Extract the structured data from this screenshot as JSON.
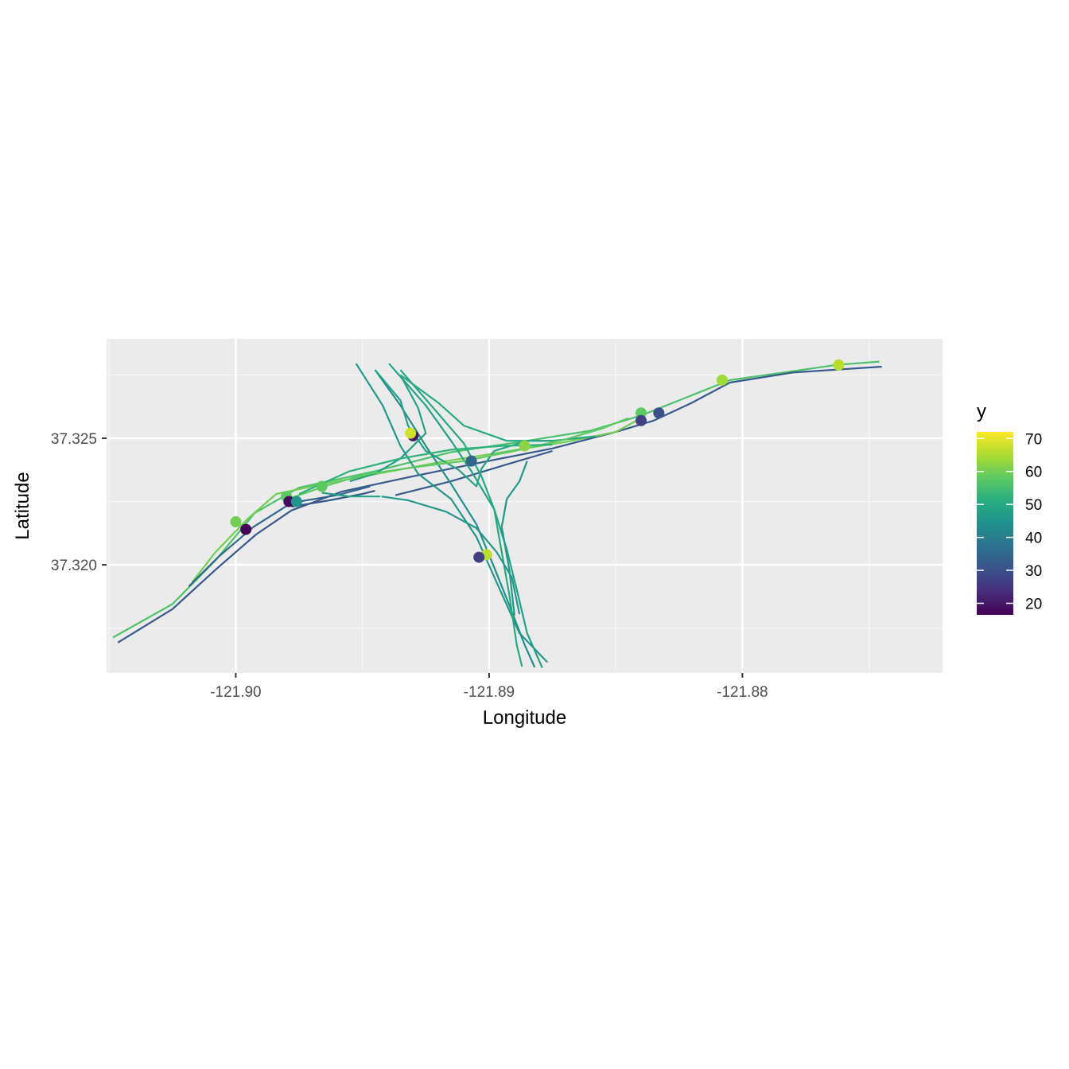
{
  "chart_data": {
    "type": "scatter",
    "geometry": "road network lines with sensor points",
    "xlabel": "Longitude",
    "ylabel": "Latitude",
    "xlim": [
      -121.9051,
      -121.8721
    ],
    "ylim": [
      37.31573,
      37.32893
    ],
    "x_ticks": [
      -121.9,
      -121.89,
      -121.88
    ],
    "x_tick_labels": [
      "-121.90",
      "-121.89",
      "-121.88"
    ],
    "x_minor_ticks": [
      -121.905,
      -121.895,
      -121.885,
      -121.875
    ],
    "y_ticks": [
      37.32,
      37.325
    ],
    "y_tick_labels": [
      "37.320",
      "37.325"
    ],
    "y_minor_ticks": [
      37.3175,
      37.3225,
      37.3275
    ],
    "grid": true,
    "panel_background": "#ebebeb",
    "legend": {
      "title": "y",
      "position": "right",
      "type": "colorbar",
      "palette": "viridis",
      "min": 16.5,
      "max": 72,
      "breaks": [
        20,
        30,
        40,
        50,
        60,
        70
      ],
      "break_labels": [
        "20",
        "30",
        "40",
        "50",
        "60",
        "70"
      ]
    },
    "lines": [
      {
        "value": 56,
        "points": [
          [
            -121.90485,
            37.31713
          ],
          [
            -121.9025,
            37.31845
          ],
          [
            -121.90078,
            37.3202
          ],
          [
            -121.89925,
            37.32205
          ],
          [
            -121.8975,
            37.32305
          ],
          [
            -121.8945,
            37.3237
          ],
          [
            -121.8915,
            37.32445
          ],
          [
            -121.8885,
            37.3249
          ],
          [
            -121.886,
            37.3253
          ],
          [
            -121.884,
            37.3259
          ],
          [
            -121.882,
            37.3267
          ],
          [
            -121.8805,
            37.3273
          ],
          [
            -121.878,
            37.32765
          ],
          [
            -121.8763,
            37.3279
          ],
          [
            -121.8746,
            37.32803
          ]
        ]
      },
      {
        "value": 32,
        "points": [
          [
            -121.90465,
            37.31693
          ],
          [
            -121.9025,
            37.31825
          ],
          [
            -121.90075,
            37.31985
          ],
          [
            -121.8992,
            37.3212
          ],
          [
            -121.8978,
            37.32215
          ],
          [
            -121.8958,
            37.3229
          ],
          [
            -121.893,
            37.3235
          ],
          [
            -121.8903,
            37.32405
          ],
          [
            -121.8875,
            37.3246
          ],
          [
            -121.885,
            37.32525
          ],
          [
            -121.8835,
            37.3257
          ],
          [
            -121.882,
            37.3264
          ],
          [
            -121.8805,
            37.3272
          ],
          [
            -121.878,
            37.3276
          ],
          [
            -121.8745,
            37.32783
          ]
        ]
      },
      {
        "value": 60,
        "points": [
          [
            -121.90172,
            37.31932
          ],
          [
            -121.9008,
            37.3205
          ],
          [
            -121.8995,
            37.32185
          ],
          [
            -121.8984,
            37.3228
          ],
          [
            -121.8965,
            37.3232
          ],
          [
            -121.8945,
            37.32358
          ],
          [
            -121.892,
            37.32405
          ],
          [
            -121.8898,
            37.3244
          ],
          [
            -121.887,
            37.32485
          ],
          [
            -121.885,
            37.32525
          ],
          [
            -121.884,
            37.3258
          ]
        ]
      },
      {
        "value": 35,
        "points": [
          [
            -121.90185,
            37.31915
          ],
          [
            -121.9007,
            37.3203
          ],
          [
            -121.8993,
            37.3215
          ],
          [
            -121.8978,
            37.32245
          ],
          [
            -121.896,
            37.32275
          ],
          [
            -121.8947,
            37.3231
          ]
        ]
      },
      {
        "value": 32,
        "points": [
          [
            -121.8978,
            37.3223
          ],
          [
            -121.8963,
            37.32255
          ],
          [
            -121.895,
            37.3228
          ],
          [
            -121.8945,
            37.32293
          ]
        ]
      },
      {
        "value": 32,
        "points": [
          [
            -121.8937,
            37.32275
          ],
          [
            -121.8915,
            37.3233
          ],
          [
            -121.8892,
            37.324
          ],
          [
            -121.8875,
            37.3245
          ]
        ]
      },
      {
        "value": 46,
        "points": [
          [
            -121.89525,
            37.32795
          ],
          [
            -121.8942,
            37.3263
          ],
          [
            -121.8935,
            37.3247
          ],
          [
            -121.8928,
            37.3236
          ],
          [
            -121.8915,
            37.3226
          ],
          [
            -121.8905,
            37.3211
          ],
          [
            -121.8897,
            37.3193
          ],
          [
            -121.8888,
            37.3173
          ],
          [
            -121.8877,
            37.31615
          ]
        ]
      },
      {
        "value": 44,
        "points": [
          [
            -121.8945,
            37.3277
          ],
          [
            -121.8935,
            37.3263
          ],
          [
            -121.8925,
            37.3247
          ],
          [
            -121.8915,
            37.3232
          ],
          [
            -121.8905,
            37.3216
          ],
          [
            -121.8898,
            37.3199
          ],
          [
            -121.8892,
            37.3184
          ],
          [
            -121.8886,
            37.31685
          ],
          [
            -121.8882,
            37.31595
          ]
        ]
      },
      {
        "value": 48,
        "points": [
          [
            -121.89395,
            37.32795
          ],
          [
            -121.8925,
            37.3263
          ],
          [
            -121.8915,
            37.3249
          ],
          [
            -121.8907,
            37.3237
          ],
          [
            -121.8898,
            37.3222
          ],
          [
            -121.8893,
            37.3206
          ],
          [
            -121.8889,
            37.319
          ],
          [
            -121.8885,
            37.3173
          ],
          [
            -121.8879,
            37.31593
          ]
        ]
      },
      {
        "value": 50,
        "points": [
          [
            -121.8935,
            37.3277
          ],
          [
            -121.8922,
            37.3262
          ],
          [
            -121.891,
            37.3248
          ],
          [
            -121.8903,
            37.3235
          ],
          [
            -121.8898,
            37.3222
          ],
          [
            -121.8895,
            37.3205
          ],
          [
            -121.8892,
            37.3188
          ],
          [
            -121.8889,
            37.3168
          ],
          [
            -121.8887,
            37.31598
          ]
        ]
      },
      {
        "value": 48,
        "points": [
          [
            -121.8935,
            37.3275
          ],
          [
            -121.8928,
            37.3262
          ],
          [
            -121.8925,
            37.3252
          ],
          [
            -121.8935,
            37.3242
          ],
          [
            -121.8945,
            37.3236
          ],
          [
            -121.8955,
            37.3233
          ]
        ]
      },
      {
        "value": 50,
        "points": [
          [
            -121.8935,
            37.3275
          ],
          [
            -121.892,
            37.3264
          ],
          [
            -121.891,
            37.3255
          ],
          [
            -121.8893,
            37.3249
          ],
          [
            -121.8875,
            37.3249
          ],
          [
            -121.8858,
            37.32508
          ]
        ]
      },
      {
        "value": 48,
        "points": [
          [
            -121.8945,
            37.3277
          ],
          [
            -121.8935,
            37.3265
          ],
          [
            -121.8932,
            37.3255
          ],
          [
            -121.8925,
            37.3245
          ],
          [
            -121.8912,
            37.32375
          ],
          [
            -121.8905,
            37.3231
          ],
          [
            -121.8903,
            37.3238
          ],
          [
            -121.8898,
            37.3245
          ],
          [
            -121.8885,
            37.3249
          ],
          [
            -121.8875,
            37.3249
          ]
        ]
      },
      {
        "value": 46,
        "points": [
          [
            -121.89425,
            37.3227
          ],
          [
            -121.8932,
            37.32255
          ],
          [
            -121.8917,
            37.3221
          ],
          [
            -121.8905,
            37.32145
          ],
          [
            -121.8897,
            37.3205
          ],
          [
            -121.8891,
            37.3195
          ],
          [
            -121.8888,
            37.31805
          ]
        ]
      },
      {
        "value": 48,
        "points": [
          [
            -121.8966,
            37.32285
          ],
          [
            -121.8955,
            37.3227
          ],
          [
            -121.8943,
            37.3227
          ]
        ]
      },
      {
        "value": 46,
        "points": [
          [
            -121.8885,
            37.3241
          ],
          [
            -121.8888,
            37.3233
          ],
          [
            -121.8893,
            37.3226
          ],
          [
            -121.8895,
            37.3215
          ],
          [
            -121.8892,
            37.3198
          ],
          [
            -121.889,
            37.318
          ]
        ]
      },
      {
        "value": 58,
        "points": [
          [
            -121.8978,
            37.32265
          ],
          [
            -121.8965,
            37.3231
          ],
          [
            -121.895,
            37.32355
          ],
          [
            -121.893,
            37.32385
          ],
          [
            -121.891,
            37.3241
          ],
          [
            -121.889,
            37.3245
          ],
          [
            -121.887,
            37.32495
          ],
          [
            -121.8855,
            37.3254
          ],
          [
            -121.8845,
            37.3258
          ]
        ]
      },
      {
        "value": 52,
        "points": [
          [
            -121.8975,
            37.3228
          ],
          [
            -121.8955,
            37.3237
          ],
          [
            -121.8935,
            37.3242
          ],
          [
            -121.8915,
            37.32455
          ],
          [
            -121.8895,
            37.3247
          ],
          [
            -121.8875,
            37.32475
          ]
        ]
      }
    ],
    "points": [
      {
        "x": -121.9,
        "y": 37.3217,
        "value": 60
      },
      {
        "x": -121.8996,
        "y": 37.3214,
        "value": 17
      },
      {
        "x": -121.898,
        "y": 37.3227,
        "value": 58
      },
      {
        "x": -121.8979,
        "y": 37.3225,
        "value": 18
      },
      {
        "x": -121.8976,
        "y": 37.3225,
        "value": 45
      },
      {
        "x": -121.8966,
        "y": 37.3231,
        "value": 58
      },
      {
        "x": -121.893,
        "y": 37.3251,
        "value": 20
      },
      {
        "x": -121.8931,
        "y": 37.3252,
        "value": 68
      },
      {
        "x": -121.8907,
        "y": 37.3241,
        "value": 35
      },
      {
        "x": -121.8886,
        "y": 37.3247,
        "value": 62
      },
      {
        "x": -121.8901,
        "y": 37.3204,
        "value": 66
      },
      {
        "x": -121.8904,
        "y": 37.3203,
        "value": 27
      },
      {
        "x": -121.884,
        "y": 37.326,
        "value": 58
      },
      {
        "x": -121.884,
        "y": 37.3257,
        "value": 27
      },
      {
        "x": -121.8833,
        "y": 37.326,
        "value": 30
      },
      {
        "x": -121.8808,
        "y": 37.3273,
        "value": 64
      },
      {
        "x": -121.8762,
        "y": 37.3279,
        "value": 66
      }
    ]
  }
}
